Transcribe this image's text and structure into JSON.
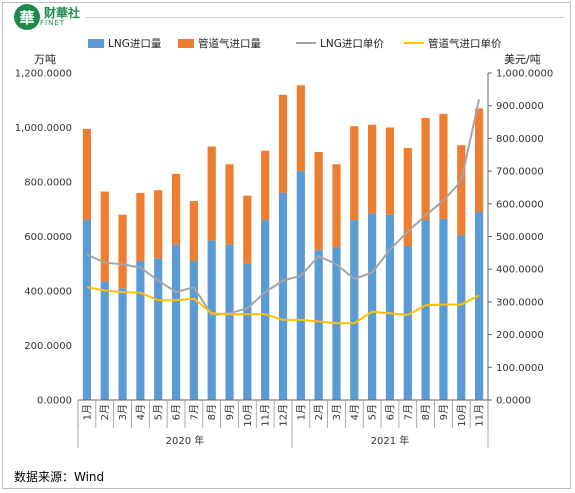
{
  "brand": {
    "char": "華",
    "name": "财華社",
    "sub": "FINET"
  },
  "source": "数据来源：Wind",
  "colors": {
    "lng": "#5b9bd5",
    "pipeline": "#ed7d31",
    "lng_price": "#a5a5a5",
    "pipe_price": "#ffc000"
  },
  "chart_data": {
    "type": "bar",
    "stacked": true,
    "categories": [
      "1月",
      "2月",
      "3月",
      "4月",
      "5月",
      "6月",
      "7月",
      "8月",
      "9月",
      "10月",
      "11月",
      "12月",
      "1月",
      "2月",
      "3月",
      "4月",
      "5月",
      "6月",
      "7月",
      "8月",
      "9月",
      "10月",
      "11月"
    ],
    "year_groups": [
      {
        "label": "2020 年",
        "span": 12
      },
      {
        "label": "2021 年",
        "span": 11
      }
    ],
    "left_unit": "万吨",
    "right_unit": "美元/吨",
    "ylim_left": [
      0,
      1200
    ],
    "ylim_right": [
      0,
      1000
    ],
    "left_ticks": [
      "0.0000",
      "200.0000",
      "400.0000",
      "600.0000",
      "800.0000",
      "1,000.0000",
      "1,200.0000"
    ],
    "right_ticks": [
      "0.0000",
      "100.0000",
      "200.0000",
      "300.0000",
      "400.0000",
      "500.0000",
      "600.0000",
      "700.0000",
      "800.0000",
      "900.0000",
      "1,000.0000"
    ],
    "series": [
      {
        "name": "LNG进口量",
        "type": "bar",
        "axis": "left",
        "values": [
          660,
          435,
          410,
          510,
          520,
          570,
          510,
          585,
          570,
          500,
          660,
          760,
          840,
          550,
          560,
          660,
          685,
          680,
          565,
          660,
          665,
          605,
          690
        ]
      },
      {
        "name": "管道气进口量",
        "type": "bar",
        "axis": "left",
        "values": [
          335,
          330,
          270,
          250,
          250,
          260,
          220,
          345,
          295,
          250,
          255,
          360,
          315,
          360,
          305,
          345,
          325,
          320,
          360,
          375,
          385,
          330,
          380
        ]
      },
      {
        "name": "LNG进口单价",
        "type": "line",
        "axis": "right",
        "values": [
          445,
          420,
          415,
          405,
          365,
          330,
          345,
          260,
          265,
          280,
          330,
          365,
          380,
          440,
          415,
          370,
          390,
          460,
          515,
          565,
          610,
          670,
          920
        ]
      },
      {
        "name": "管道气进口单价",
        "type": "line",
        "axis": "right",
        "values": [
          345,
          335,
          330,
          328,
          305,
          305,
          310,
          265,
          262,
          262,
          262,
          245,
          245,
          240,
          235,
          235,
          270,
          265,
          260,
          290,
          292,
          292,
          320
        ]
      }
    ],
    "legend": "top",
    "grid": false
  }
}
